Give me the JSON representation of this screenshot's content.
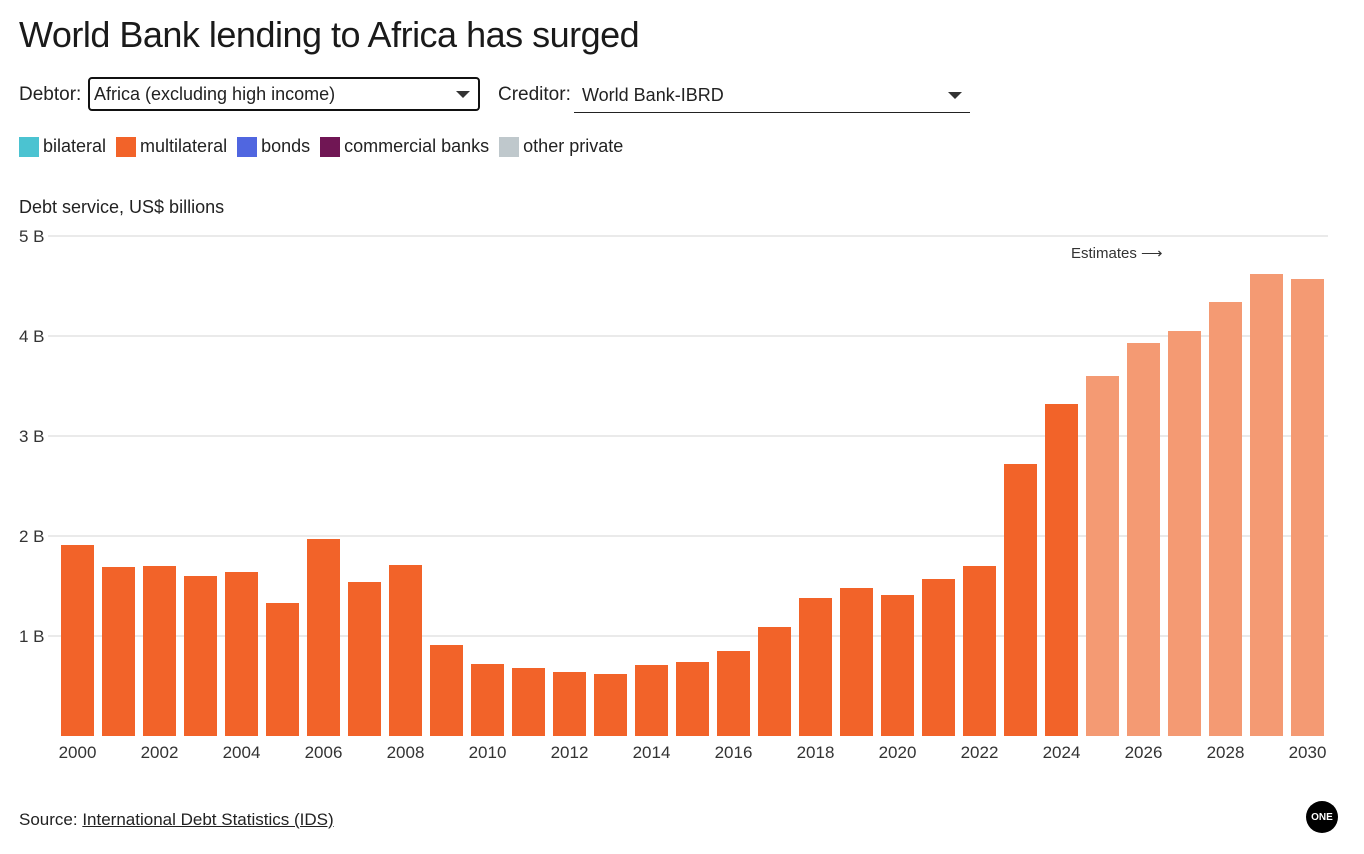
{
  "title": "World Bank lending to Africa has surged",
  "controls": {
    "debtor_label": "Debtor:",
    "debtor_value": "Africa (excluding high income)",
    "creditor_label": "Creditor:",
    "creditor_value": "World Bank-IBRD"
  },
  "legend": [
    {
      "label": "bilateral",
      "color": "#4bc3d1"
    },
    {
      "label": "multilateral",
      "color": "#f26329"
    },
    {
      "label": "bonds",
      "color": "#5066e0"
    },
    {
      "label": "commercial banks",
      "color": "#701654"
    },
    {
      "label": "other private",
      "color": "#bfc8cc"
    }
  ],
  "source": {
    "prefix": "Source:",
    "link": "International Debt Statistics (IDS)"
  },
  "logo": "ONE",
  "chart_data": {
    "type": "bar",
    "title": "World Bank lending to Africa has surged",
    "ylabel": "Debt service, US$ billions",
    "ylim": [
      0,
      5
    ],
    "yticks": [
      {
        "v": 1,
        "label": "1 B"
      },
      {
        "v": 2,
        "label": "2 B"
      },
      {
        "v": 3,
        "label": "3 B"
      },
      {
        "v": 4,
        "label": "4 B"
      },
      {
        "v": 5,
        "label": "5 B"
      }
    ],
    "grid": true,
    "annotation": "Estimates ⟶",
    "estimate_start": 2025,
    "colors": {
      "actual": "#f26329",
      "estimate": "#f49a73"
    },
    "series": [
      {
        "name": "multilateral",
        "x": [
          2000,
          2001,
          2002,
          2003,
          2004,
          2005,
          2006,
          2007,
          2008,
          2009,
          2010,
          2011,
          2012,
          2013,
          2014,
          2015,
          2016,
          2017,
          2018,
          2019,
          2020,
          2021,
          2022,
          2023,
          2024,
          2025,
          2026,
          2027,
          2028,
          2029,
          2030
        ],
        "values": [
          1.91,
          1.69,
          1.7,
          1.6,
          1.64,
          1.33,
          1.97,
          1.54,
          1.71,
          0.91,
          0.72,
          0.68,
          0.64,
          0.62,
          0.71,
          0.74,
          0.85,
          1.09,
          1.38,
          1.48,
          1.41,
          1.57,
          1.7,
          2.72,
          3.32,
          3.6,
          3.93,
          4.05,
          4.34,
          4.62,
          4.57
        ]
      }
    ],
    "xtick_labels": [
      "2000",
      "2002",
      "2004",
      "2006",
      "2008",
      "2010",
      "2012",
      "2014",
      "2016",
      "2018",
      "2020",
      "2022",
      "2024",
      "2026",
      "2028",
      "2030"
    ]
  }
}
